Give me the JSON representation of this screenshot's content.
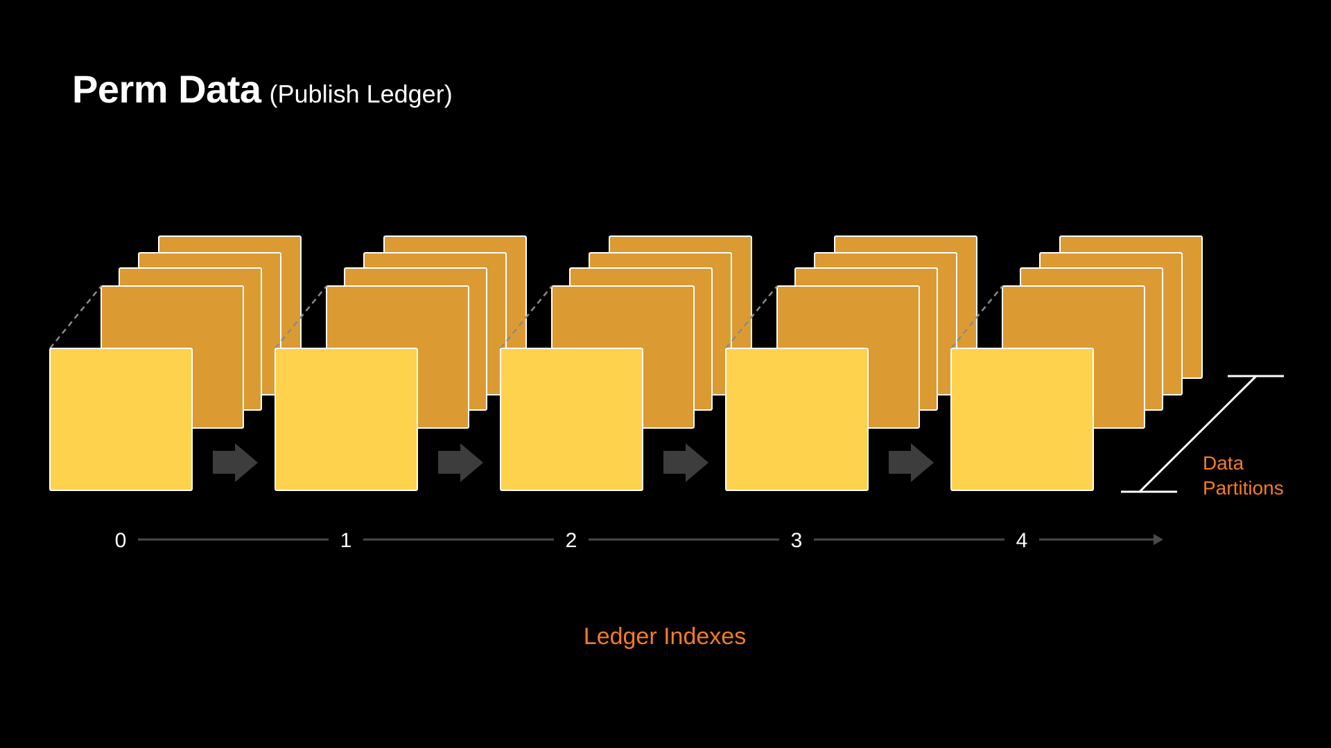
{
  "title": {
    "main": "Perm Data",
    "sub": "(Publish Ledger)"
  },
  "diagram": {
    "ledger_indexes": [
      "0",
      "1",
      "2",
      "3",
      "4"
    ],
    "partitions_label_line1": "Data",
    "partitions_label_line2": "Partitions",
    "axis_label": "Ledger Indexes",
    "colors": {
      "background": "#000000",
      "front_square": "#ffd24d",
      "back_square": "#dc9a33",
      "outline": "#ffffff",
      "arrow": "#3d3d3d",
      "axis": "#4a4a4a",
      "dashed": "#8a8a8a",
      "label_accent": "#f47c20"
    }
  }
}
